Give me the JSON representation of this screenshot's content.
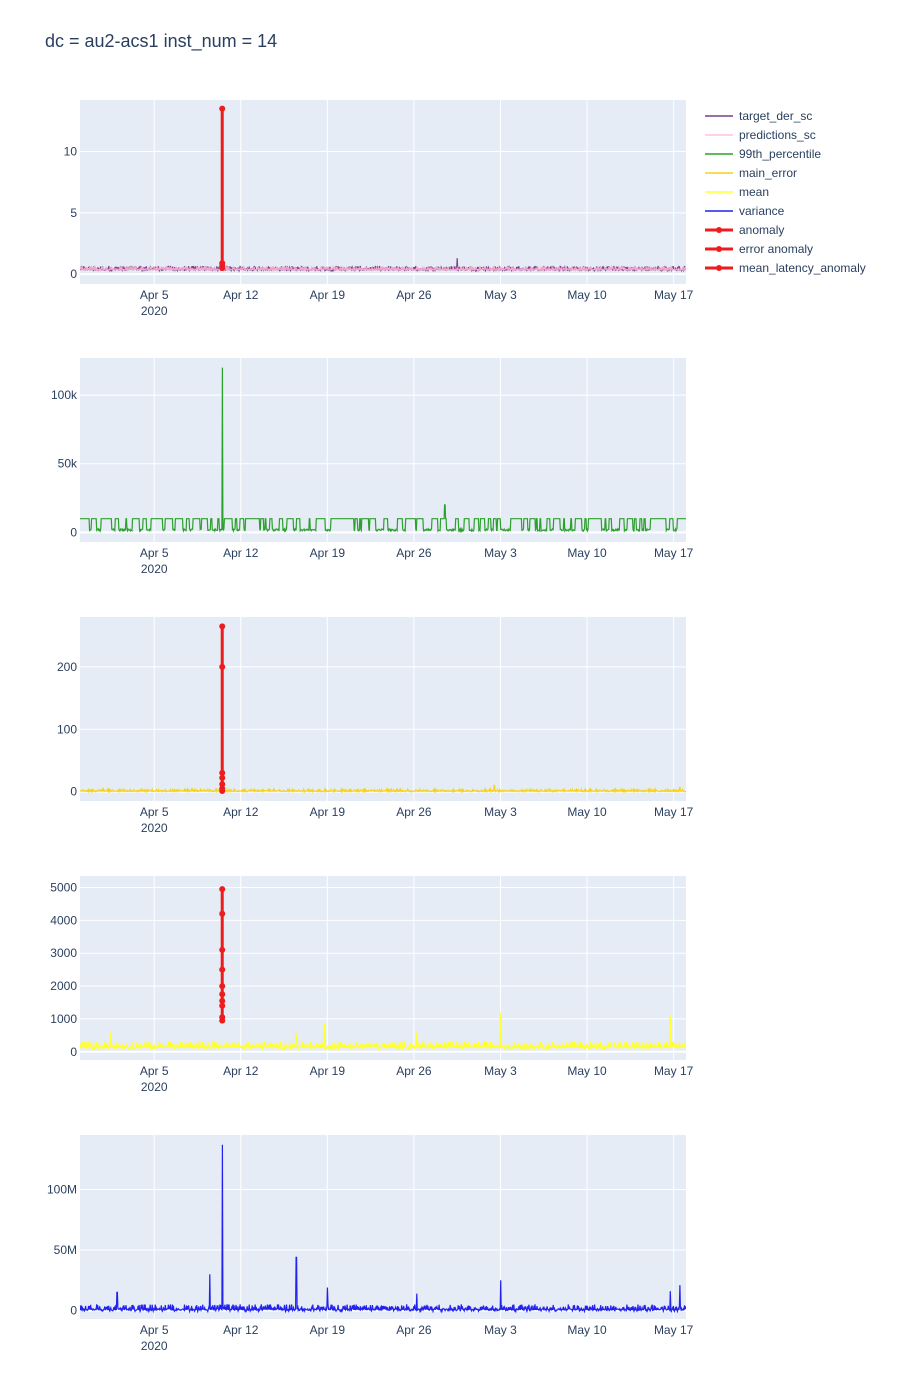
{
  "title": "dc = au2-acs1 inst_num = 14",
  "legend": [
    {
      "name": "target_der_sc",
      "color": "#7b3f8c",
      "marker": false
    },
    {
      "name": "predictions_sc",
      "color": "#ffc0e0",
      "marker": false
    },
    {
      "name": "99th_percentile",
      "color": "#2ca02c",
      "marker": false
    },
    {
      "name": "main_error",
      "color": "#f5d21c",
      "marker": false
    },
    {
      "name": "mean",
      "color": "#ffff33",
      "marker": false
    },
    {
      "name": "variance",
      "color": "#2222ee",
      "marker": false
    },
    {
      "name": "anomaly",
      "color": "#ee1c1c",
      "marker": true
    },
    {
      "name": "error anomaly",
      "color": "#ee1c1c",
      "marker": true
    },
    {
      "name": "mean_latency_anomaly",
      "color": "#ee1c1c",
      "marker": true
    }
  ],
  "chart_data": [
    {
      "type": "line",
      "x_ticks": [
        {
          "date": "2020-04-05",
          "label": "Apr 5",
          "sub": "2020"
        },
        {
          "date": "2020-04-12",
          "label": "Apr 12",
          "sub": ""
        },
        {
          "date": "2020-04-19",
          "label": "Apr 19",
          "sub": ""
        },
        {
          "date": "2020-04-26",
          "label": "Apr 26",
          "sub": ""
        },
        {
          "date": "2020-05-03",
          "label": "May 3",
          "sub": ""
        },
        {
          "date": "2020-05-10",
          "label": "May 10",
          "sub": ""
        },
        {
          "date": "2020-05-17",
          "label": "May 17",
          "sub": ""
        }
      ],
      "xlim": [
        "2020-03-30",
        "2020-05-18"
      ],
      "ylim": [
        -0.8,
        14.2
      ],
      "y_ticks": [
        {
          "v": 0,
          "label": "0"
        },
        {
          "v": 5,
          "label": "5"
        },
        {
          "v": 10,
          "label": "10"
        }
      ],
      "series": [
        {
          "name": "target_der_sc",
          "color": "#7b3f8c",
          "kind": "band",
          "base": 0.4,
          "amp": 0.4,
          "spikes": [
            {
              "date": "2020-04-29T12",
              "v": 1.3
            }
          ]
        },
        {
          "name": "predictions_sc",
          "color": "#f4a6c8",
          "kind": "band",
          "base": 0.4,
          "amp": 0.3,
          "spikes": []
        },
        {
          "name": "anomaly",
          "color": "#ee1c1c",
          "kind": "anomaly",
          "date": "2020-04-10T12",
          "points": [
            0.5,
            0.7,
            0.9,
            13.5
          ]
        }
      ]
    },
    {
      "type": "line",
      "x_ticks": [
        {
          "date": "2020-04-05",
          "label": "Apr 5",
          "sub": "2020"
        },
        {
          "date": "2020-04-12",
          "label": "Apr 12",
          "sub": ""
        },
        {
          "date": "2020-04-19",
          "label": "Apr 19",
          "sub": ""
        },
        {
          "date": "2020-04-26",
          "label": "Apr 26",
          "sub": ""
        },
        {
          "date": "2020-05-03",
          "label": "May 3",
          "sub": ""
        },
        {
          "date": "2020-05-10",
          "label": "May 10",
          "sub": ""
        },
        {
          "date": "2020-05-17",
          "label": "May 17",
          "sub": ""
        }
      ],
      "xlim": [
        "2020-03-30",
        "2020-05-18"
      ],
      "ylim": [
        -7000,
        127000
      ],
      "y_ticks": [
        {
          "v": 0,
          "label": "0"
        },
        {
          "v": 50000,
          "label": "50k"
        },
        {
          "v": 100000,
          "label": "100k"
        }
      ],
      "series": [
        {
          "name": "99th_percentile",
          "color": "#2ca02c",
          "kind": "square",
          "base": 1000,
          "high": 10000,
          "spikes": [
            {
              "date": "2020-04-10T12",
              "v": 120000
            },
            {
              "date": "2020-04-28T12",
              "v": 20000
            }
          ]
        }
      ]
    },
    {
      "type": "line",
      "x_ticks": [
        {
          "date": "2020-04-05",
          "label": "Apr 5",
          "sub": "2020"
        },
        {
          "date": "2020-04-12",
          "label": "Apr 12",
          "sub": ""
        },
        {
          "date": "2020-04-19",
          "label": "Apr 19",
          "sub": ""
        },
        {
          "date": "2020-04-26",
          "label": "Apr 26",
          "sub": ""
        },
        {
          "date": "2020-05-03",
          "label": "May 3",
          "sub": ""
        },
        {
          "date": "2020-05-10",
          "label": "May 10",
          "sub": ""
        },
        {
          "date": "2020-05-17",
          "label": "May 17",
          "sub": ""
        }
      ],
      "xlim": [
        "2020-03-30",
        "2020-05-18"
      ],
      "ylim": [
        -15,
        280
      ],
      "y_ticks": [
        {
          "v": 0,
          "label": "0"
        },
        {
          "v": 100,
          "label": "100"
        },
        {
          "v": 200,
          "label": "200"
        }
      ],
      "series": [
        {
          "name": "main_error",
          "color": "#f5d21c",
          "kind": "band",
          "base": 1,
          "amp": 4,
          "spikes": [
            {
              "date": "2020-05-02T12",
              "v": 10
            },
            {
              "date": "2020-05-17T12",
              "v": 8
            }
          ]
        },
        {
          "name": "error anomaly",
          "color": "#ee1c1c",
          "kind": "anomaly",
          "date": "2020-04-10T12",
          "points": [
            1,
            5,
            12,
            22,
            30,
            200,
            265
          ]
        }
      ]
    },
    {
      "type": "line",
      "x_ticks": [
        {
          "date": "2020-04-05",
          "label": "Apr 5",
          "sub": "2020"
        },
        {
          "date": "2020-04-12",
          "label": "Apr 12",
          "sub": ""
        },
        {
          "date": "2020-04-19",
          "label": "Apr 19",
          "sub": ""
        },
        {
          "date": "2020-04-26",
          "label": "Apr 26",
          "sub": ""
        },
        {
          "date": "2020-05-03",
          "label": "May 3",
          "sub": ""
        },
        {
          "date": "2020-05-10",
          "label": "May 10",
          "sub": ""
        },
        {
          "date": "2020-05-17",
          "label": "May 17",
          "sub": ""
        }
      ],
      "xlim": [
        "2020-03-30",
        "2020-05-18"
      ],
      "ylim": [
        -250,
        5350
      ],
      "y_ticks": [
        {
          "v": 0,
          "label": "0"
        },
        {
          "v": 1000,
          "label": "1000"
        },
        {
          "v": 2000,
          "label": "2000"
        },
        {
          "v": 3000,
          "label": "3000"
        },
        {
          "v": 4000,
          "label": "4000"
        },
        {
          "v": 5000,
          "label": "5000"
        }
      ],
      "series": [
        {
          "name": "mean",
          "color": "#ffff33",
          "kind": "band",
          "base": 150,
          "amp": 250,
          "spikes": [
            {
              "date": "2020-04-18T18",
              "v": 850
            },
            {
              "date": "2020-05-03T00",
              "v": 1200
            },
            {
              "date": "2020-05-16T18",
              "v": 1100
            },
            {
              "date": "2020-04-01T12",
              "v": 600
            },
            {
              "date": "2020-04-16T12",
              "v": 550
            },
            {
              "date": "2020-04-26T06",
              "v": 600
            }
          ]
        },
        {
          "name": "mean_latency_anomaly",
          "color": "#ee1c1c",
          "kind": "anomaly",
          "date": "2020-04-10T12",
          "points": [
            950,
            1050,
            1400,
            1550,
            1750,
            2000,
            2500,
            3100,
            4200,
            4950
          ]
        }
      ]
    },
    {
      "type": "line",
      "x_ticks": [
        {
          "date": "2020-04-05",
          "label": "Apr 5",
          "sub": "2020"
        },
        {
          "date": "2020-04-12",
          "label": "Apr 12",
          "sub": ""
        },
        {
          "date": "2020-04-19",
          "label": "Apr 19",
          "sub": ""
        },
        {
          "date": "2020-04-26",
          "label": "Apr 26",
          "sub": ""
        },
        {
          "date": "2020-05-03",
          "label": "May 3",
          "sub": ""
        },
        {
          "date": "2020-05-10",
          "label": "May 10",
          "sub": ""
        },
        {
          "date": "2020-05-17",
          "label": "May 17",
          "sub": ""
        }
      ],
      "xlim": [
        "2020-03-30",
        "2020-05-18"
      ],
      "ylim": [
        -7000000,
        145000000
      ],
      "y_ticks": [
        {
          "v": 0,
          "label": "0"
        },
        {
          "v": 50000000,
          "label": "50M"
        },
        {
          "v": 100000000,
          "label": "100M"
        }
      ],
      "series": [
        {
          "name": "variance",
          "color": "#2222ee",
          "kind": "band",
          "base": 1000000,
          "amp": 6000000,
          "spikes": [
            {
              "date": "2020-04-10T12",
              "v": 137000000
            },
            {
              "date": "2020-04-09T12",
              "v": 30000000
            },
            {
              "date": "2020-04-16T12",
              "v": 44000000
            },
            {
              "date": "2020-04-19T00",
              "v": 19000000
            },
            {
              "date": "2020-05-03T00",
              "v": 25000000
            },
            {
              "date": "2020-05-17T12",
              "v": 21000000
            },
            {
              "date": "2020-04-02T00",
              "v": 15000000
            },
            {
              "date": "2020-04-26T06",
              "v": 14000000
            },
            {
              "date": "2020-05-16T18",
              "v": 16000000
            }
          ]
        }
      ]
    }
  ]
}
